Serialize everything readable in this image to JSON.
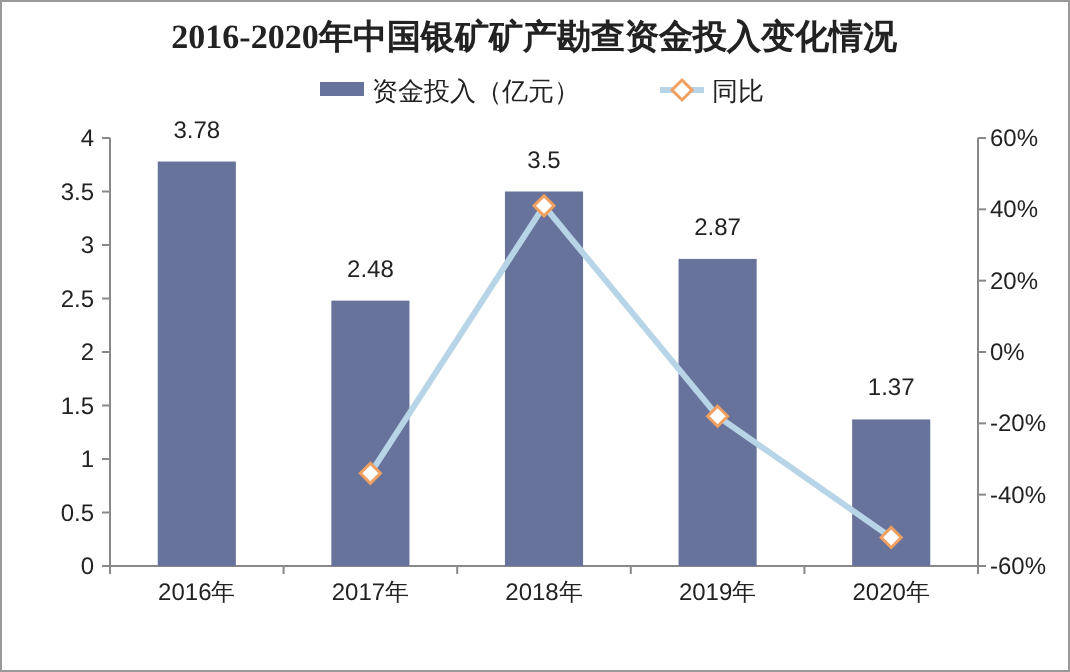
{
  "chart_data": {
    "type": "bar",
    "title": "2016-2020年中国银矿矿产勘查资金投入变化情况",
    "categories": [
      "2016年",
      "2017年",
      "2018年",
      "2019年",
      "2020年"
    ],
    "series": [
      {
        "name": "资金投入（亿元）",
        "color": "#67739a",
        "values": [
          3.78,
          2.48,
          3.5,
          2.87,
          1.37
        ],
        "value_labels": [
          "3.78",
          "2.48",
          "3.5",
          "2.87",
          "1.37"
        ]
      },
      {
        "name": "同比",
        "type": "line",
        "axis": "y2",
        "color": "#b7d5e6",
        "marker": "diamond",
        "values": [
          null,
          -34,
          41,
          -18,
          -52
        ]
      }
    ],
    "ylim": [
      0,
      4
    ],
    "yticks": [
      0,
      0.5,
      1,
      1.5,
      2,
      2.5,
      3,
      3.5,
      4
    ],
    "y2lim": [
      -60,
      60
    ],
    "y2ticks": [
      {
        "value": -60,
        "label": "-60%"
      },
      {
        "value": -40,
        "label": "-40%"
      },
      {
        "value": -20,
        "label": "-20%"
      },
      {
        "value": 0,
        "label": "0%"
      },
      {
        "value": 20,
        "label": "20%"
      },
      {
        "value": 40,
        "label": "40%"
      },
      {
        "value": 60,
        "label": "60%"
      }
    ],
    "legend": "top",
    "grid": false
  }
}
